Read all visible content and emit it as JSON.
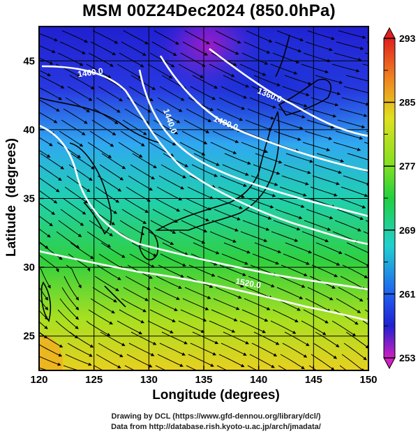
{
  "title": "MSM 00Z24Dec2024 (850.0hPa)",
  "xlabel": "Longitude (degrees)",
  "ylabel": "Latitude  (degrees)",
  "credit_line1": "Drawing by DCL (https://www.gfd-dennou.org/library/dcl/)",
  "credit_line2": "Data from http://database.rish.kyoto-u.ac.jp/arch/jmadata/",
  "colors": {
    "cold_magenta": "#c000c0",
    "cold_blue": "#2030e0",
    "mid_cyan": "#20d0d0",
    "mid_green": "#30d040",
    "warm_yellow": "#e8e020",
    "warm_orange": "#f0a020",
    "hot_red": "#e03030",
    "contour": "#ffffff",
    "coast": "#000000"
  },
  "chart_data": {
    "type": "heatmap",
    "xlim": [
      120,
      150
    ],
    "ylim": [
      22.5,
      47.5
    ],
    "xticks": [
      "120",
      "125",
      "130",
      "135",
      "140",
      "145",
      "150"
    ],
    "yticks": [
      "25",
      "30",
      "35",
      "40",
      "45"
    ],
    "grid": true,
    "colorbar": {
      "min": 253,
      "max": 293,
      "labels": [
        "293",
        "285",
        "277",
        "269",
        "261",
        "253"
      ]
    },
    "contour_labels": [
      "1360.0",
      "1400.0",
      "1440.0",
      "1460.0",
      "1520.0"
    ]
  }
}
